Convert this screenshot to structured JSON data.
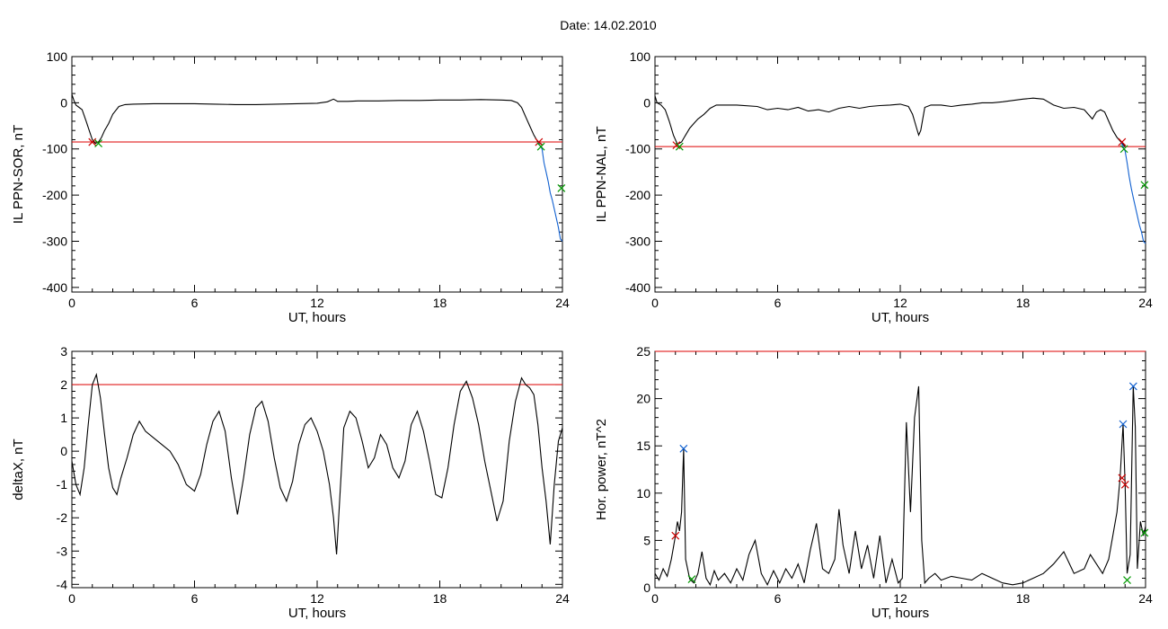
{
  "page_title": "Date:  14.02.2010",
  "chart_data": [
    {
      "id": "top-left",
      "type": "line",
      "title": "",
      "xlabel": "UT, hours",
      "ylabel": "IL PPN-SOR, nT",
      "xlim": [
        0,
        24
      ],
      "ylim": [
        -410,
        100
      ],
      "xticks": [
        0,
        6,
        12,
        18,
        24
      ],
      "yticks": [
        100,
        0,
        -100,
        -200,
        -300,
        -400
      ],
      "grid": false,
      "threshold": -85,
      "series": [
        {
          "color": "#000000",
          "x": [
            0,
            0.1,
            0.2,
            0.35,
            0.5,
            0.7,
            0.85,
            1.0,
            1.15,
            1.3,
            1.45,
            1.6,
            1.8,
            2.0,
            2.3,
            2.6,
            3,
            4,
            5,
            6,
            7,
            8,
            9,
            10,
            11,
            12,
            12.5,
            12.8,
            13.0,
            13.5,
            14,
            15,
            16,
            17,
            18,
            19,
            20,
            21,
            21.5,
            21.8,
            22.0,
            22.2,
            22.4,
            22.6,
            22.8,
            23.0
          ],
          "y": [
            18,
            5,
            -5,
            -10,
            -15,
            -40,
            -60,
            -80,
            -88,
            -85,
            -75,
            -60,
            -45,
            -25,
            -8,
            -4,
            -3,
            -2,
            -2,
            -2,
            -3,
            -4,
            -4,
            -3,
            -2,
            -1,
            2,
            8,
            3,
            3,
            4,
            4,
            5,
            5,
            6,
            6,
            7,
            6,
            5,
            0,
            -10,
            -30,
            -50,
            -70,
            -85,
            -90
          ]
        },
        {
          "color": "#1060d0",
          "x": [
            22.8,
            23.0,
            23.1,
            23.2,
            23.3,
            23.4,
            23.5,
            23.6,
            23.7,
            23.8,
            23.9,
            24.0
          ],
          "y": [
            -85,
            -100,
            -130,
            -150,
            -170,
            -195,
            -210,
            -230,
            -250,
            -270,
            -295,
            -300
          ]
        }
      ],
      "markers": [
        {
          "symbol": "x",
          "color": "#cc0000",
          "x": 1.0,
          "y": -85
        },
        {
          "symbol": "x",
          "color": "#009900",
          "x": 1.3,
          "y": -88
        },
        {
          "symbol": "x",
          "color": "#cc0000",
          "x": 22.85,
          "y": -85
        },
        {
          "symbol": "x",
          "color": "#009900",
          "x": 22.95,
          "y": -95
        },
        {
          "symbol": "x",
          "color": "#009900",
          "x": 23.95,
          "y": -185
        }
      ]
    },
    {
      "id": "top-right",
      "type": "line",
      "title": "",
      "xlabel": "UT, hours",
      "ylabel": "IL PPN-NAL, nT",
      "xlim": [
        0,
        24
      ],
      "ylim": [
        -410,
        100
      ],
      "xticks": [
        0,
        6,
        12,
        18,
        24
      ],
      "yticks": [
        100,
        0,
        -100,
        -200,
        -300,
        -400
      ],
      "grid": false,
      "threshold": -95,
      "series": [
        {
          "color": "#000000",
          "x": [
            0,
            0.1,
            0.3,
            0.5,
            0.7,
            0.9,
            1.1,
            1.3,
            1.5,
            1.7,
            1.9,
            2.1,
            2.4,
            2.7,
            3,
            4,
            5,
            5.5,
            6,
            6.5,
            7,
            7.5,
            8,
            8.5,
            9,
            9.5,
            10,
            10.5,
            11,
            11.5,
            12,
            12.4,
            12.6,
            12.8,
            12.9,
            13.0,
            13.2,
            13.5,
            14,
            14.5,
            15,
            15.5,
            16,
            16.5,
            17,
            17.5,
            18,
            18.5,
            19,
            19.5,
            20,
            20.5,
            21,
            21.2,
            21.4,
            21.6,
            21.8,
            22.0,
            22.2,
            22.4,
            22.6,
            22.8,
            23.0
          ],
          "y": [
            15,
            0,
            -5,
            -15,
            -40,
            -70,
            -90,
            -85,
            -70,
            -55,
            -45,
            -35,
            -25,
            -12,
            -5,
            -5,
            -8,
            -15,
            -12,
            -15,
            -10,
            -18,
            -15,
            -20,
            -12,
            -8,
            -12,
            -8,
            -6,
            -5,
            -3,
            -8,
            -25,
            -55,
            -70,
            -60,
            -10,
            -5,
            -5,
            -8,
            -5,
            -3,
            0,
            0,
            2,
            5,
            8,
            10,
            8,
            -5,
            -12,
            -10,
            -15,
            -25,
            -35,
            -20,
            -15,
            -20,
            -40,
            -60,
            -75,
            -85,
            -95
          ]
        },
        {
          "color": "#1060d0",
          "x": [
            22.8,
            23.0,
            23.1,
            23.2,
            23.3,
            23.4,
            23.5,
            23.6,
            23.7,
            23.8,
            23.9,
            24.0
          ],
          "y": [
            -85,
            -105,
            -130,
            -160,
            -185,
            -205,
            -225,
            -245,
            -265,
            -280,
            -300,
            -305
          ]
        }
      ],
      "markers": [
        {
          "symbol": "x",
          "color": "#cc0000",
          "x": 1.05,
          "y": -92
        },
        {
          "symbol": "x",
          "color": "#009900",
          "x": 1.2,
          "y": -95
        },
        {
          "symbol": "x",
          "color": "#cc0000",
          "x": 22.85,
          "y": -85
        },
        {
          "symbol": "x",
          "color": "#009900",
          "x": 22.95,
          "y": -100
        },
        {
          "symbol": "x",
          "color": "#009900",
          "x": 23.95,
          "y": -178
        }
      ]
    },
    {
      "id": "bottom-left",
      "type": "line",
      "title": "",
      "xlabel": "UT, hours",
      "ylabel": "deltaX, nT",
      "xlim": [
        0,
        24
      ],
      "ylim": [
        -4.1,
        3
      ],
      "xticks": [
        0,
        6,
        12,
        18,
        24
      ],
      "yticks": [
        3,
        2,
        1,
        0,
        -1,
        -2,
        -3,
        -4
      ],
      "grid": false,
      "threshold": 2.0,
      "series": [
        {
          "color": "#000000",
          "x": [
            0,
            0.2,
            0.4,
            0.6,
            0.8,
            1.0,
            1.2,
            1.4,
            1.6,
            1.8,
            2.0,
            2.2,
            2.4,
            2.7,
            3.0,
            3.3,
            3.6,
            4.0,
            4.4,
            4.8,
            5.2,
            5.6,
            6.0,
            6.3,
            6.6,
            6.9,
            7.2,
            7.5,
            7.8,
            8.1,
            8.4,
            8.7,
            9.0,
            9.3,
            9.6,
            9.9,
            10.2,
            10.5,
            10.8,
            11.1,
            11.4,
            11.7,
            12.0,
            12.3,
            12.6,
            12.8,
            12.95,
            13.1,
            13.3,
            13.6,
            13.9,
            14.2,
            14.5,
            14.8,
            15.1,
            15.4,
            15.7,
            16.0,
            16.3,
            16.6,
            16.9,
            17.2,
            17.5,
            17.8,
            18.1,
            18.4,
            18.7,
            19.0,
            19.3,
            19.6,
            19.9,
            20.2,
            20.5,
            20.8,
            21.1,
            21.4,
            21.7,
            22.0,
            22.2,
            22.4,
            22.6,
            22.8,
            23.0,
            23.2,
            23.4,
            23.6,
            23.8,
            24.0
          ],
          "y": [
            -0.3,
            -1.0,
            -1.3,
            -0.5,
            0.8,
            2.0,
            2.3,
            1.6,
            0.5,
            -0.5,
            -1.1,
            -1.3,
            -0.8,
            -0.2,
            0.5,
            0.9,
            0.6,
            0.4,
            0.2,
            0.0,
            -0.4,
            -1.0,
            -1.2,
            -0.7,
            0.2,
            0.9,
            1.2,
            0.6,
            -0.8,
            -1.9,
            -0.8,
            0.5,
            1.3,
            1.5,
            0.9,
            -0.2,
            -1.1,
            -1.5,
            -0.9,
            0.2,
            0.8,
            1.0,
            0.6,
            0.0,
            -1.0,
            -2.0,
            -3.1,
            -1.5,
            0.7,
            1.2,
            1.0,
            0.3,
            -0.5,
            -0.2,
            0.5,
            0.2,
            -0.5,
            -0.8,
            -0.3,
            0.8,
            1.2,
            0.6,
            -0.3,
            -1.3,
            -1.4,
            -0.5,
            0.8,
            1.8,
            2.1,
            1.6,
            0.8,
            -0.3,
            -1.2,
            -2.1,
            -1.5,
            0.3,
            1.5,
            2.2,
            2.0,
            1.9,
            1.7,
            0.8,
            -0.5,
            -1.5,
            -2.8,
            -1.0,
            0.3,
            0.7
          ]
        }
      ],
      "markers": []
    },
    {
      "id": "bottom-right",
      "type": "line",
      "title": "",
      "xlabel": "UT, hours",
      "ylabel": "Hor. power, nT^2",
      "xlim": [
        0,
        24
      ],
      "ylim": [
        0,
        25
      ],
      "xticks": [
        0,
        6,
        12,
        18,
        24
      ],
      "yticks": [
        25,
        20,
        15,
        10,
        5,
        0
      ],
      "grid": false,
      "threshold": 25,
      "series": [
        {
          "color": "#000000",
          "x": [
            0,
            0.2,
            0.4,
            0.6,
            0.8,
            1.0,
            1.1,
            1.2,
            1.3,
            1.4,
            1.5,
            1.7,
            1.9,
            2.1,
            2.3,
            2.5,
            2.7,
            2.9,
            3.1,
            3.4,
            3.7,
            4.0,
            4.3,
            4.6,
            4.9,
            5.2,
            5.5,
            5.8,
            6.1,
            6.4,
            6.7,
            7.0,
            7.3,
            7.6,
            7.9,
            8.2,
            8.5,
            8.8,
            9.0,
            9.2,
            9.5,
            9.8,
            10.1,
            10.4,
            10.7,
            11.0,
            11.3,
            11.6,
            11.9,
            12.1,
            12.3,
            12.5,
            12.7,
            12.9,
            13.05,
            13.2,
            13.4,
            13.7,
            14.0,
            14.5,
            15.0,
            15.5,
            16.0,
            16.5,
            17.0,
            17.5,
            18.0,
            18.5,
            19.0,
            19.5,
            20.0,
            20.5,
            21.0,
            21.3,
            21.6,
            21.9,
            22.2,
            22.4,
            22.6,
            22.75,
            22.9,
            23.0,
            23.1,
            23.25,
            23.4,
            23.5,
            23.6,
            23.75,
            23.9,
            24.0
          ],
          "y": [
            1.5,
            0.8,
            2.0,
            1.2,
            3.0,
            5.5,
            7.0,
            6.0,
            8.0,
            14.7,
            3.0,
            0.9,
            0.5,
            1.5,
            3.8,
            1.0,
            0.3,
            1.8,
            0.8,
            1.5,
            0.5,
            2.0,
            0.8,
            3.5,
            5.0,
            1.5,
            0.3,
            1.8,
            0.5,
            2.0,
            1.0,
            2.5,
            0.5,
            4.0,
            6.8,
            2.0,
            1.5,
            3.0,
            8.3,
            4.5,
            1.5,
            6.0,
            2.0,
            4.5,
            1.0,
            5.5,
            0.5,
            3.0,
            0.5,
            1.0,
            17.5,
            8.0,
            18.0,
            21.3,
            5.0,
            0.5,
            1.0,
            1.5,
            0.8,
            1.2,
            1.0,
            0.8,
            1.5,
            1.0,
            0.5,
            0.3,
            0.5,
            1.0,
            1.5,
            2.5,
            3.8,
            1.5,
            2.0,
            3.5,
            2.5,
            1.5,
            3.0,
            5.5,
            8.0,
            11.5,
            17.3,
            10.8,
            1.5,
            3.5,
            21.3,
            17.0,
            2.0,
            7.0,
            5.5,
            6.5
          ]
        }
      ],
      "markers": [
        {
          "symbol": "x",
          "color": "#cc0000",
          "x": 1.0,
          "y": 5.5
        },
        {
          "symbol": "x",
          "color": "#1060d0",
          "x": 1.4,
          "y": 14.7
        },
        {
          "symbol": "x",
          "color": "#009900",
          "x": 1.8,
          "y": 0.9
        },
        {
          "symbol": "x",
          "color": "#1060d0",
          "x": 22.9,
          "y": 17.3
        },
        {
          "symbol": "x",
          "color": "#cc0000",
          "x": 22.85,
          "y": 11.6
        },
        {
          "symbol": "x",
          "color": "#cc0000",
          "x": 23.0,
          "y": 10.9
        },
        {
          "symbol": "x",
          "color": "#009900",
          "x": 23.1,
          "y": 0.8
        },
        {
          "symbol": "x",
          "color": "#1060d0",
          "x": 23.4,
          "y": 21.3
        },
        {
          "symbol": "x",
          "color": "#009900",
          "x": 23.95,
          "y": 5.8
        }
      ]
    }
  ]
}
